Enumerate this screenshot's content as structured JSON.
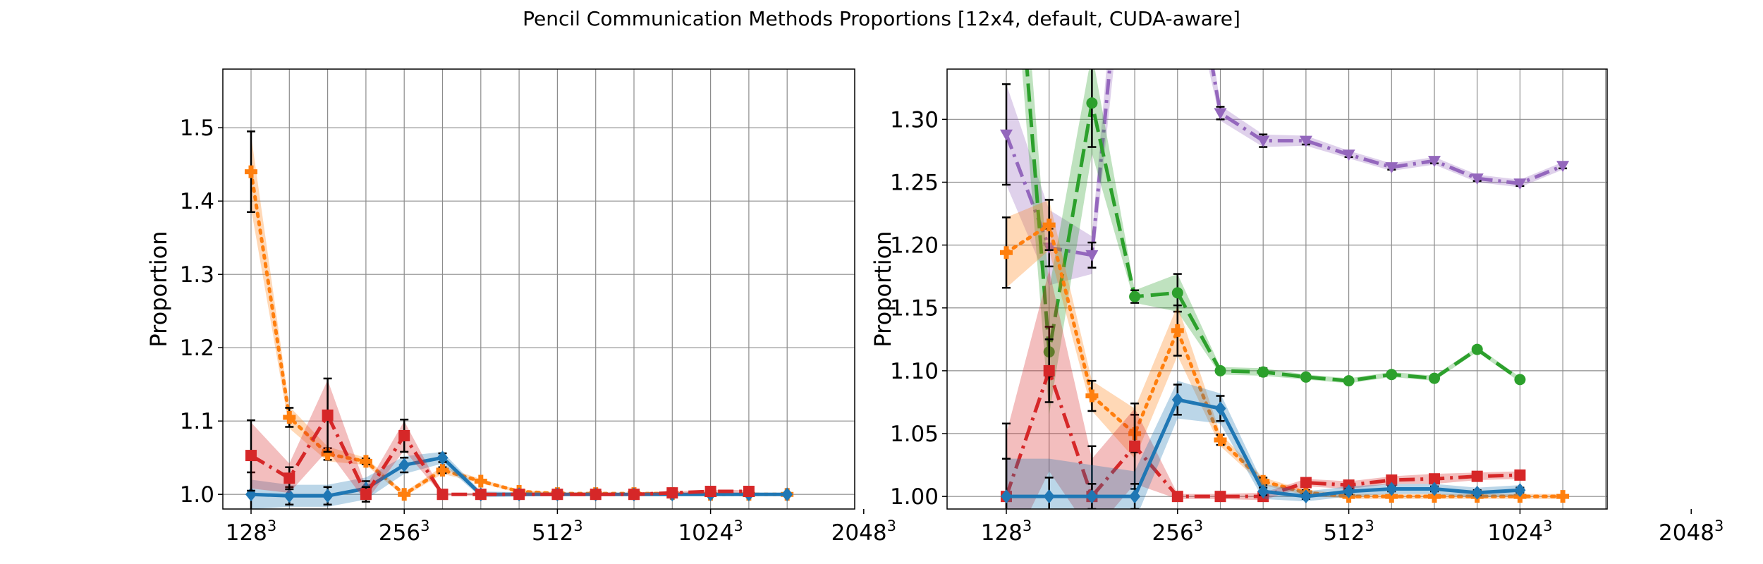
{
  "figure": {
    "title": "Pencil Communication Methods Proportions [12x4, default, CUDA-aware]"
  },
  "chart_data": [
    {
      "type": "line",
      "ylabel": "Proportion",
      "xlabel": "",
      "ylim": [
        0.98,
        1.58
      ],
      "yticks": [
        1.0,
        1.1,
        1.2,
        1.3,
        1.4,
        1.5
      ],
      "ytick_labels": [
        "1.0",
        "1.1",
        "1.2",
        "1.3",
        "1.4",
        "1.5"
      ],
      "x_count": 15,
      "xticks": [
        {
          "index": 0,
          "base": "128",
          "exp": "3"
        },
        {
          "index": 4,
          "base": "256",
          "exp": "3"
        },
        {
          "index": 8,
          "base": "512",
          "exp": "3"
        },
        {
          "index": 12,
          "base": "1024",
          "exp": "3"
        },
        {
          "index": 16,
          "base": "2048",
          "exp": "3"
        }
      ],
      "grid": true,
      "series": [
        {
          "color": "#ff7f0e",
          "dash": "dotted",
          "marker": "plus",
          "values": [
            1.44,
            1.105,
            1.055,
            1.045,
            1.0,
            1.033,
            1.018,
            1.004,
            1.001,
            1.001,
            1.001,
            1.001,
            1.0,
            1.0,
            1.0
          ],
          "band": [
            0.05,
            0.015,
            0.01,
            0.005,
            0.003,
            0.005,
            0.003,
            0.002,
            0.002,
            0.001,
            0.001,
            0.001,
            0.001,
            0.001,
            0.001
          ],
          "err": [
            0.055,
            0.013,
            0.008,
            0.004,
            0.002,
            0.004,
            0.002,
            0.001,
            0.001,
            0.001,
            0.001,
            0.001,
            0.001,
            0.001,
            0.001
          ]
        },
        {
          "color": "#1f77b4",
          "dash": "solid",
          "marker": "diamond",
          "values": [
            1.0,
            0.998,
            0.998,
            1.008,
            1.04,
            1.05,
            1.0,
            1.0,
            1.0,
            1.0,
            1.0,
            1.0,
            1.0,
            1.0,
            1.0
          ],
          "band": [
            0.02,
            0.015,
            0.015,
            0.015,
            0.012,
            0.008,
            0.004,
            0.003,
            0.002,
            0.002,
            0.002,
            0.002,
            0.002,
            0.002,
            0.002
          ],
          "err": [
            0.03,
            0.012,
            0.012,
            0.01,
            0.01,
            0.006,
            0.003,
            0.002,
            0.001,
            0.001,
            0.001,
            0.001,
            0.001,
            0.001,
            0.001
          ]
        },
        {
          "color": "#d62728",
          "dash": "dashdot",
          "marker": "square",
          "values": [
            1.053,
            1.022,
            1.108,
            1.0,
            1.08,
            1.0,
            1.0,
            1.0,
            1.0,
            1.0,
            1.0,
            1.002,
            1.004,
            1.004
          ],
          "band": [
            0.045,
            0.02,
            0.048,
            0.01,
            0.02,
            0.002,
            0.002,
            0.002,
            0.002,
            0.002,
            0.002,
            0.002,
            0.002,
            0.002
          ],
          "err": [
            0.048,
            0.015,
            0.05,
            0.01,
            0.022,
            0.001,
            0.001,
            0.001,
            0.001,
            0.001,
            0.001,
            0.001,
            0.001,
            0.001
          ]
        }
      ]
    },
    {
      "type": "line",
      "ylabel": "Proportion",
      "xlabel": "",
      "ylim": [
        0.99,
        1.34
      ],
      "yticks": [
        1.0,
        1.05,
        1.1,
        1.15,
        1.2,
        1.25,
        1.3
      ],
      "ytick_labels": [
        "1.00",
        "1.05",
        "1.10",
        "1.15",
        "1.20",
        "1.25",
        "1.30"
      ],
      "x_count": 15,
      "xticks": [
        {
          "index": 0,
          "base": "128",
          "exp": "3"
        },
        {
          "index": 4,
          "base": "256",
          "exp": "3"
        },
        {
          "index": 8,
          "base": "512",
          "exp": "3"
        },
        {
          "index": 12,
          "base": "1024",
          "exp": "3"
        },
        {
          "index": 16,
          "base": "2048",
          "exp": "3"
        }
      ],
      "grid": true,
      "series": [
        {
          "color": "#9467bd",
          "dash": "dashdot",
          "marker": "triangle-down",
          "values": [
            1.288,
            1.198,
            1.192,
            1.55,
            1.5,
            1.305,
            1.283,
            1.283,
            1.272,
            1.262,
            1.267,
            1.253,
            1.249,
            1.263
          ],
          "band": [
            0.04,
            0.03,
            0.015,
            0.05,
            0.05,
            0.006,
            0.005,
            0.004,
            0.003,
            0.003,
            0.003,
            0.003,
            0.003,
            0.003
          ],
          "err": [
            0.04,
            0.015,
            0.01,
            0.04,
            0.04,
            0.005,
            0.005,
            0.003,
            0.002,
            0.002,
            0.002,
            0.002,
            0.002,
            0.002
          ]
        },
        {
          "color": "#2ca02c",
          "dash": "dashed",
          "marker": "circle",
          "values": [
            1.55,
            1.115,
            1.313,
            1.159,
            1.162,
            1.1,
            1.099,
            1.095,
            1.092,
            1.097,
            1.094,
            1.117,
            1.093
          ],
          "band": [
            0.05,
            0.05,
            0.04,
            0.005,
            0.015,
            0.003,
            0.003,
            0.002,
            0.002,
            0.002,
            0.002,
            0.002,
            0.002
          ],
          "err": [
            0.05,
            0.02,
            0.035,
            0.005,
            0.015,
            0.002,
            0.003,
            0.002,
            0.002,
            0.002,
            0.002,
            0.002,
            0.002
          ]
        },
        {
          "color": "#ff7f0e",
          "dash": "dotted",
          "marker": "plus",
          "values": [
            1.194,
            1.216,
            1.08,
            1.05,
            1.132,
            1.045,
            1.012,
            1.003,
            1.0,
            1.0,
            1.0,
            1.0,
            1.0,
            1.0
          ],
          "band": [
            0.028,
            0.02,
            0.012,
            0.02,
            0.02,
            0.005,
            0.003,
            0.002,
            0.002,
            0.002,
            0.002,
            0.002,
            0.002,
            0.002
          ],
          "err": [
            0.028,
            0.02,
            0.012,
            0.015,
            0.02,
            0.004,
            0.003,
            0.002,
            0.001,
            0.001,
            0.001,
            0.001,
            0.001,
            0.001
          ]
        },
        {
          "color": "#d62728",
          "dash": "dashdot",
          "marker": "square",
          "values": [
            1.0,
            1.1,
            1.0,
            1.04,
            1.0,
            1.0,
            1.0,
            1.011,
            1.009,
            1.013,
            1.014,
            1.016,
            1.017
          ],
          "band": [
            0.05,
            0.08,
            0.03,
            0.03,
            0.002,
            0.002,
            0.003,
            0.003,
            0.003,
            0.003,
            0.004,
            0.003,
            0.003
          ],
          "err": [
            0.058,
            0.025,
            0.04,
            0.034,
            0.002,
            0.002,
            0.002,
            0.002,
            0.002,
            0.002,
            0.002,
            0.002,
            0.002
          ]
        },
        {
          "color": "#1f77b4",
          "dash": "solid",
          "marker": "diamond",
          "values": [
            1.0,
            1.0,
            1.0,
            1.0,
            1.077,
            1.07,
            1.004,
            1.0,
            1.004,
            1.006,
            1.006,
            1.003,
            1.005
          ],
          "band": [
            0.03,
            0.03,
            0.025,
            0.02,
            0.015,
            0.012,
            0.006,
            0.004,
            0.004,
            0.004,
            0.004,
            0.004,
            0.004
          ],
          "err": [
            0.03,
            0.015,
            0.01,
            0.01,
            0.012,
            0.01,
            0.003,
            0.002,
            0.002,
            0.002,
            0.002,
            0.002,
            0.002
          ]
        }
      ]
    }
  ]
}
